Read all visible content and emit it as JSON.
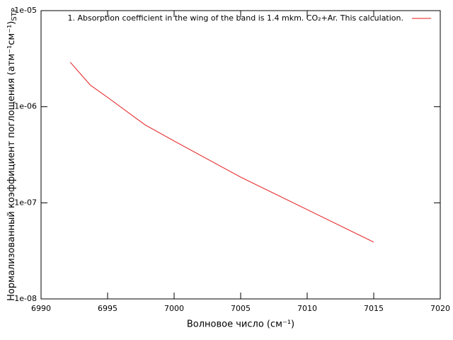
{
  "chart_data": {
    "type": "line",
    "xlabel": "Волновое число (см⁻¹)",
    "ylabel": "Нормализованный коэффициент поглощения (атм⁻¹см⁻¹)",
    "ylabel_sub": "STP",
    "x": [
      6992.2,
      6993.7,
      6995,
      6997.8,
      7000,
      7005,
      7010,
      7015
    ],
    "series": [
      {
        "name": "1. Absorption coefficient in the wing of the band is 1.4 mkm. CO₂+Ar. This calculation.",
        "color": "#e41a1c",
        "values": [
          2.9e-06,
          1.68e-06,
          1.25e-06,
          6.5e-07,
          4.4e-07,
          1.85e-07,
          8.5e-08,
          3.9e-08
        ]
      }
    ],
    "xlim": [
      6990,
      7020
    ],
    "xticks": [
      6990,
      6995,
      7000,
      7005,
      7010,
      7015,
      7020
    ],
    "ylim": [
      1e-08,
      1e-05
    ],
    "yticks": [
      {
        "value": 1e-08,
        "label": "1e-08"
      },
      {
        "value": 1e-07,
        "label": "1e-07"
      },
      {
        "value": 1e-06,
        "label": "1e-06"
      },
      {
        "value": 1e-05,
        "label": "1e-05"
      }
    ],
    "ylog": true,
    "legend": "top-right"
  }
}
